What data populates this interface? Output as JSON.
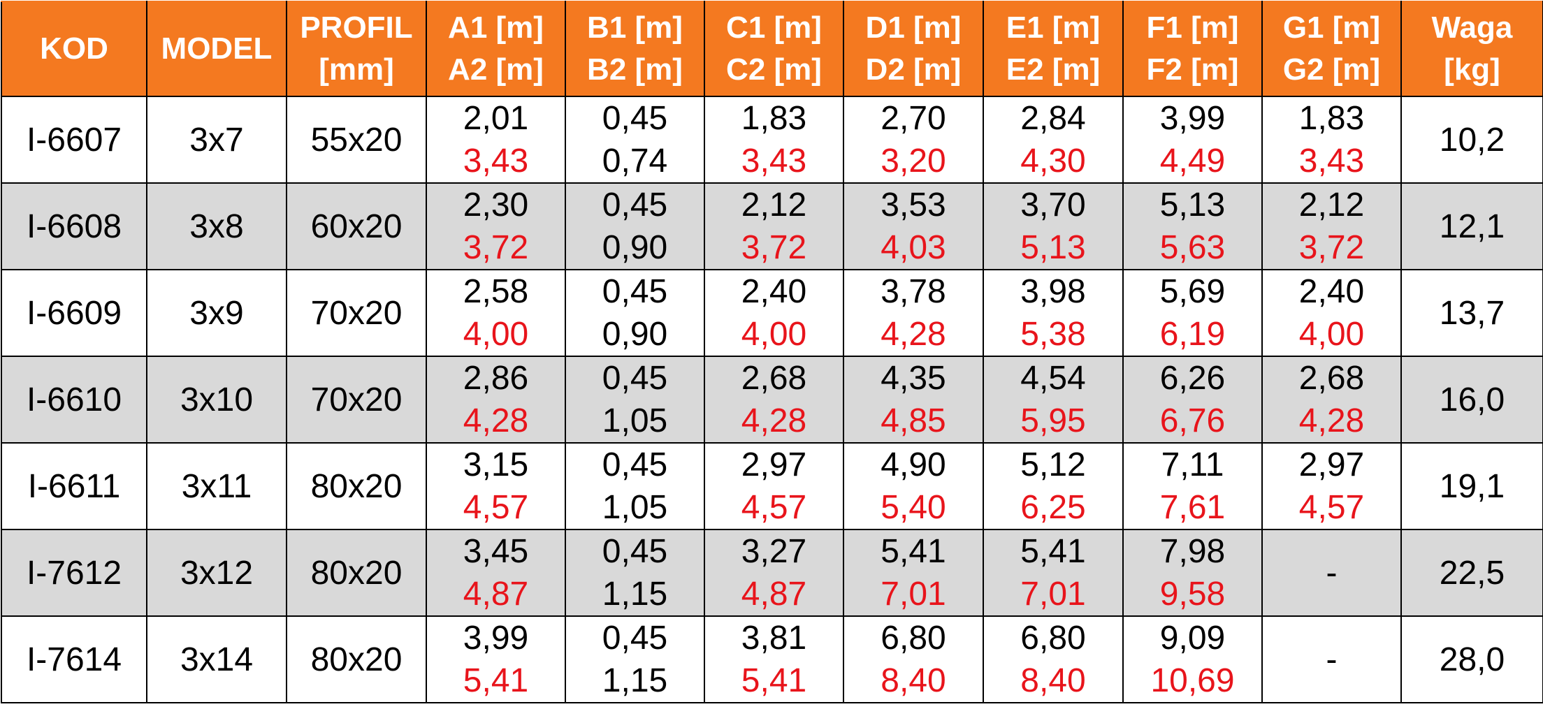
{
  "table": {
    "header": [
      "KOD",
      "MODEL",
      [
        "PROFIL",
        "[mm]"
      ],
      [
        "A1 [m]",
        "A2 [m]"
      ],
      [
        "B1 [m]",
        "B2 [m]"
      ],
      [
        "C1 [m]",
        "C2 [m]"
      ],
      [
        "D1 [m]",
        "D2 [m]"
      ],
      [
        "E1 [m]",
        "E2 [m]"
      ],
      [
        "F1 [m]",
        "F2 [m]"
      ],
      [
        "G1 [m]",
        "G2 [m]"
      ],
      [
        "Waga",
        "[kg]"
      ]
    ],
    "rows": [
      [
        "I-6607",
        "3x7",
        "55x20",
        [
          "2,01",
          "3,43"
        ],
        [
          "0,45",
          "0,74"
        ],
        [
          "1,83",
          "3,43"
        ],
        [
          "2,70",
          "3,20"
        ],
        [
          "2,84",
          "4,30"
        ],
        [
          "3,99",
          "4,49"
        ],
        [
          "1,83",
          "3,43"
        ],
        "10,2"
      ],
      [
        "I-6608",
        "3x8",
        "60x20",
        [
          "2,30",
          "3,72"
        ],
        [
          "0,45",
          "0,90"
        ],
        [
          "2,12",
          "3,72"
        ],
        [
          "3,53",
          "4,03"
        ],
        [
          "3,70",
          "5,13"
        ],
        [
          "5,13",
          "5,63"
        ],
        [
          "2,12",
          "3,72"
        ],
        "12,1"
      ],
      [
        "I-6609",
        "3x9",
        "70x20",
        [
          "2,58",
          "4,00"
        ],
        [
          "0,45",
          "0,90"
        ],
        [
          "2,40",
          "4,00"
        ],
        [
          "3,78",
          "4,28"
        ],
        [
          "3,98",
          "5,38"
        ],
        [
          "5,69",
          "6,19"
        ],
        [
          "2,40",
          "4,00"
        ],
        "13,7"
      ],
      [
        "I-6610",
        "3x10",
        "70x20",
        [
          "2,86",
          "4,28"
        ],
        [
          "0,45",
          "1,05"
        ],
        [
          "2,68",
          "4,28"
        ],
        [
          "4,35",
          "4,85"
        ],
        [
          "4,54",
          "5,95"
        ],
        [
          "6,26",
          "6,76"
        ],
        [
          "2,68",
          "4,28"
        ],
        "16,0"
      ],
      [
        "I-6611",
        "3x11",
        "80x20",
        [
          "3,15",
          "4,57"
        ],
        [
          "0,45",
          "1,05"
        ],
        [
          "2,97",
          "4,57"
        ],
        [
          "4,90",
          "5,40"
        ],
        [
          "5,12",
          "6,25"
        ],
        [
          "7,11",
          "7,61"
        ],
        [
          "2,97",
          "4,57"
        ],
        "19,1"
      ],
      [
        "I-7612",
        "3x12",
        "80x20",
        [
          "3,45",
          "4,87"
        ],
        [
          "0,45",
          "1,15"
        ],
        [
          "3,27",
          "4,87"
        ],
        [
          "5,41",
          "7,01"
        ],
        [
          "5,41",
          "7,01"
        ],
        [
          "7,98",
          "9,58"
        ],
        "-",
        "22,5"
      ],
      [
        "I-7614",
        "3x14",
        "80x20",
        [
          "3,99",
          "5,41"
        ],
        [
          "0,45",
          "1,15"
        ],
        [
          "3,81",
          "5,41"
        ],
        [
          "6,80",
          "8,40"
        ],
        [
          "6,80",
          "8,40"
        ],
        [
          "9,09",
          "10,69"
        ],
        "-",
        "28,0"
      ]
    ]
  }
}
